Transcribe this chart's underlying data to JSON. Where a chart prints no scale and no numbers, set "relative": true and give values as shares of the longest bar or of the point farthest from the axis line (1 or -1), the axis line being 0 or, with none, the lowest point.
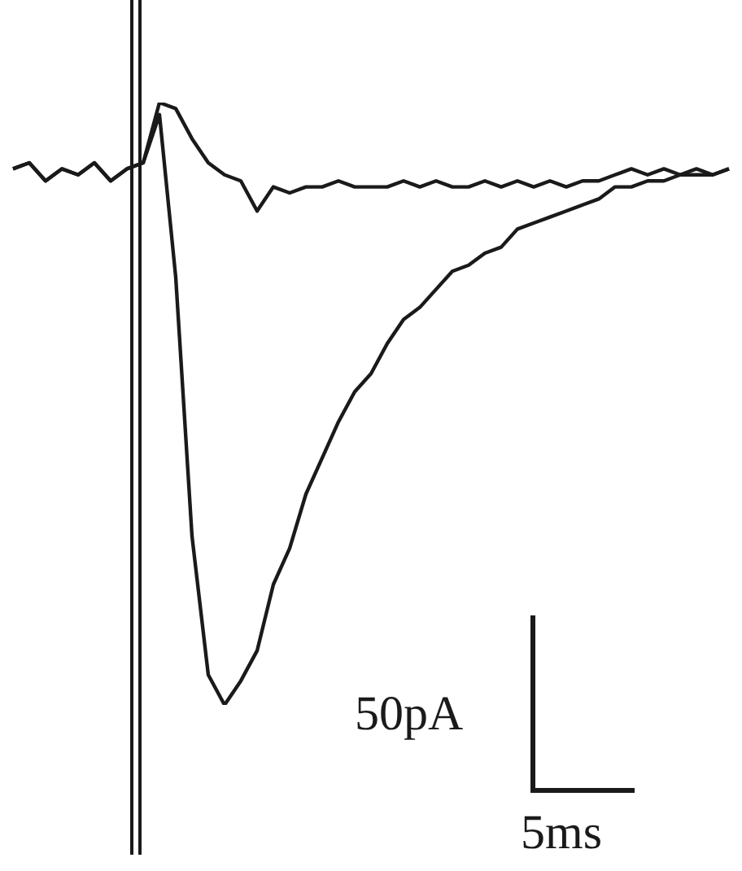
{
  "chart_data": {
    "type": "line",
    "relative": true,
    "legend": false,
    "marker": "none",
    "line_style": "solid",
    "categories": [
      null,
      null,
      null,
      null,
      null,
      null,
      null,
      null,
      null,
      null,
      null,
      null,
      null,
      null,
      null,
      null,
      null,
      null,
      null,
      null,
      null,
      null,
      null,
      null,
      null,
      null,
      null,
      null,
      null,
      null,
      null,
      null,
      null,
      null,
      null,
      null,
      null,
      null,
      null,
      null,
      null,
      null,
      null,
      null,
      null
    ],
    "series": [
      {
        "color": "#1a1a1a",
        "values": [
          0.89,
          0.9,
          0.87,
          0.89,
          0.88,
          0.9,
          0.87,
          0.89,
          0.9,
          1,
          0.99,
          0.94,
          0.9,
          0.88,
          0.87,
          0.82,
          0.86,
          0.85,
          0.86,
          0.86,
          0.87,
          0.86,
          0.86,
          0.86,
          0.87,
          0.86,
          0.87,
          0.86,
          0.86,
          0.87,
          0.86,
          0.87,
          0.86,
          0.87,
          0.86,
          0.87,
          0.87,
          0.88,
          0.89,
          0.88,
          0.89,
          0.88,
          0.89,
          0.88,
          0.89
        ]
      },
      {
        "color": "#1a1a1a",
        "values": [
          0.89,
          0.9,
          0.87,
          0.89,
          0.88,
          0.9,
          0.87,
          0.89,
          0.9,
          0.98,
          0.71,
          0.28,
          0.05,
          0,
          0.04,
          0.09,
          0.2,
          0.26,
          0.35,
          0.41,
          0.47,
          0.52,
          0.55,
          0.6,
          0.64,
          0.66,
          0.69,
          0.72,
          0.73,
          0.75,
          0.76,
          0.79,
          0.8,
          0.81,
          0.82,
          0.83,
          0.84,
          0.86,
          0.86,
          0.87,
          0.87,
          0.88,
          0.88,
          0.88,
          0.89
        ]
      }
    ],
    "annotations": [
      "50pA",
      "5ms"
    ]
  }
}
